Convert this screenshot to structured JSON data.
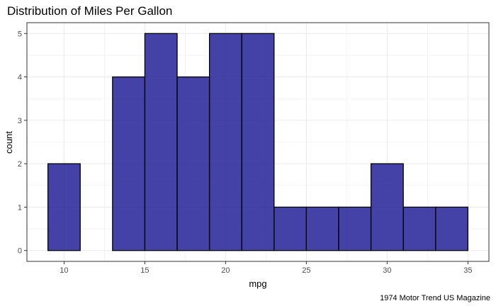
{
  "chart_data": {
    "type": "bar",
    "title": "Distribution of Miles Per Gallon",
    "xlabel": "mpg",
    "ylabel": "count",
    "caption": "1974 Motor Trend US Magazine",
    "bin_width": 2,
    "bins": [
      {
        "x0": 9,
        "x1": 11,
        "count": 2
      },
      {
        "x0": 11,
        "x1": 13,
        "count": 0
      },
      {
        "x0": 13,
        "x1": 15,
        "count": 4
      },
      {
        "x0": 15,
        "x1": 17,
        "count": 5
      },
      {
        "x0": 17,
        "x1": 19,
        "count": 4
      },
      {
        "x0": 19,
        "x1": 21,
        "count": 5
      },
      {
        "x0": 21,
        "x1": 23,
        "count": 5
      },
      {
        "x0": 23,
        "x1": 25,
        "count": 1
      },
      {
        "x0": 25,
        "x1": 27,
        "count": 1
      },
      {
        "x0": 27,
        "x1": 29,
        "count": 1
      },
      {
        "x0": 29,
        "x1": 31,
        "count": 2
      },
      {
        "x0": 31,
        "x1": 33,
        "count": 1
      },
      {
        "x0": 33,
        "x1": 35,
        "count": 1
      }
    ],
    "xlim": [
      7.7,
      36.3
    ],
    "ylim": [
      -0.25,
      5.25
    ],
    "x_ticks": [
      "10",
      "15",
      "20",
      "25",
      "30",
      "35"
    ],
    "y_ticks": [
      "0",
      "1",
      "2",
      "3",
      "4",
      "5"
    ],
    "grid": true,
    "bar_fill": "#232196",
    "bar_outline": "#000000",
    "grid_color": "#ebebeb",
    "panel_border": "#333333"
  }
}
